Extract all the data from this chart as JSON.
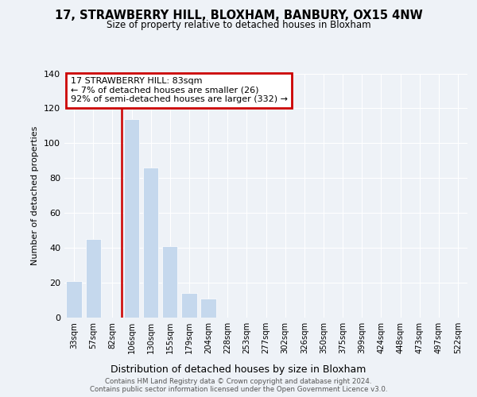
{
  "title1": "17, STRAWBERRY HILL, BLOXHAM, BANBURY, OX15 4NW",
  "title2": "Size of property relative to detached houses in Bloxham",
  "xlabel": "Distribution of detached houses by size in Bloxham",
  "ylabel": "Number of detached properties",
  "categories": [
    "33sqm",
    "57sqm",
    "82sqm",
    "106sqm",
    "130sqm",
    "155sqm",
    "179sqm",
    "204sqm",
    "228sqm",
    "253sqm",
    "277sqm",
    "302sqm",
    "326sqm",
    "350sqm",
    "375sqm",
    "399sqm",
    "424sqm",
    "448sqm",
    "473sqm",
    "497sqm",
    "522sqm"
  ],
  "values": [
    21,
    45,
    0,
    114,
    86,
    41,
    14,
    11,
    0,
    0,
    0,
    0,
    0,
    0,
    0,
    0,
    0,
    0,
    0,
    0,
    0
  ],
  "bar_color": "#c5d8ed",
  "annotation_text": "17 STRAWBERRY HILL: 83sqm\n← 7% of detached houses are smaller (26)\n92% of semi-detached houses are larger (332) →",
  "annotation_box_color": "#ffffff",
  "annotation_box_edge": "#cc0000",
  "vline_color": "#cc0000",
  "footer": "Contains HM Land Registry data © Crown copyright and database right 2024.\nContains public sector information licensed under the Open Government Licence v3.0.",
  "ylim": [
    0,
    140
  ],
  "yticks": [
    0,
    20,
    40,
    60,
    80,
    100,
    120,
    140
  ],
  "background_color": "#eef2f7",
  "vline_x": 2.5
}
